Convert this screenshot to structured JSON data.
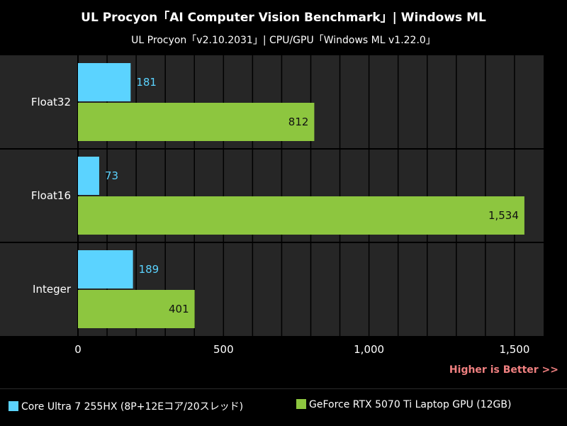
{
  "header": {
    "title": "UL Procyon「AI Computer Vision Benchmark」| Windows ML",
    "subtitle": "UL Procyon「v2.10.2031」| CPU/GPU「Windows ML v1.22.0」"
  },
  "footnote": "Higher is Better >>",
  "colors": {
    "cpu": "#5bd3ff",
    "gpu": "#8dc63f",
    "background": "#000000",
    "panel": "#262626",
    "footnote": "#f08080"
  },
  "chart_data": {
    "type": "bar",
    "orientation": "horizontal",
    "title": "UL Procyon「AI Computer Vision Benchmark」| Windows ML",
    "subtitle": "UL Procyon「v2.10.2031」| CPU/GPU「Windows ML v1.22.0」",
    "categories": [
      "Float32",
      "Float16",
      "Integer"
    ],
    "series": [
      {
        "name": "Core Ultra 7 255HX (8P+12Eコア/20スレッド)",
        "values": [
          181,
          73,
          189
        ],
        "labels": [
          "181",
          "73",
          "189"
        ]
      },
      {
        "name": "GeForce RTX 5070 Ti Laptop GPU (12GB)",
        "values": [
          812,
          1534,
          401
        ],
        "labels": [
          "812",
          "1,534",
          "401"
        ]
      }
    ],
    "xlim": [
      0,
      1600
    ],
    "xticks": [
      0,
      500,
      1000,
      1500
    ],
    "xtick_labels": [
      "0",
      "500",
      "1,000",
      "1,500"
    ],
    "grid": true,
    "legend_position": "bottom"
  }
}
